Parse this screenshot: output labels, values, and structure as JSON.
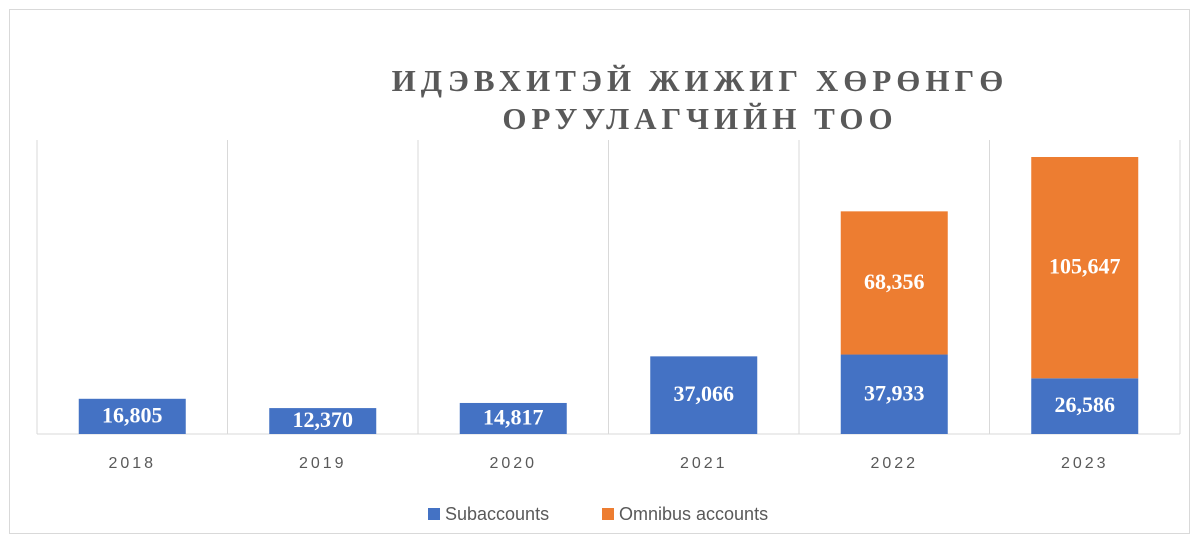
{
  "chart_data": {
    "type": "stacked_bar",
    "title": "ИДЭВХИТЭЙ ЖИЖИГ ХӨРӨНГӨ ОРУУЛАГЧИЙН ТОО",
    "categories": [
      "2018",
      "2019",
      "2020",
      "2021",
      "2022",
      "2023"
    ],
    "series": [
      {
        "name": "Subaccounts",
        "color": "#4472c4",
        "values": [
          16805,
          12370,
          14817,
          37066,
          37933,
          26586
        ],
        "value_labels": [
          "16,805",
          "12,370",
          "14,817",
          "37,066",
          "37,933",
          "26,586"
        ]
      },
      {
        "name": "Omnibus accounts",
        "color": "#ed7d31",
        "values": [
          null,
          null,
          null,
          null,
          68356,
          105647
        ],
        "value_labels": [
          null,
          null,
          null,
          null,
          "68,356",
          "105,647"
        ]
      }
    ],
    "legend": "bottom"
  }
}
